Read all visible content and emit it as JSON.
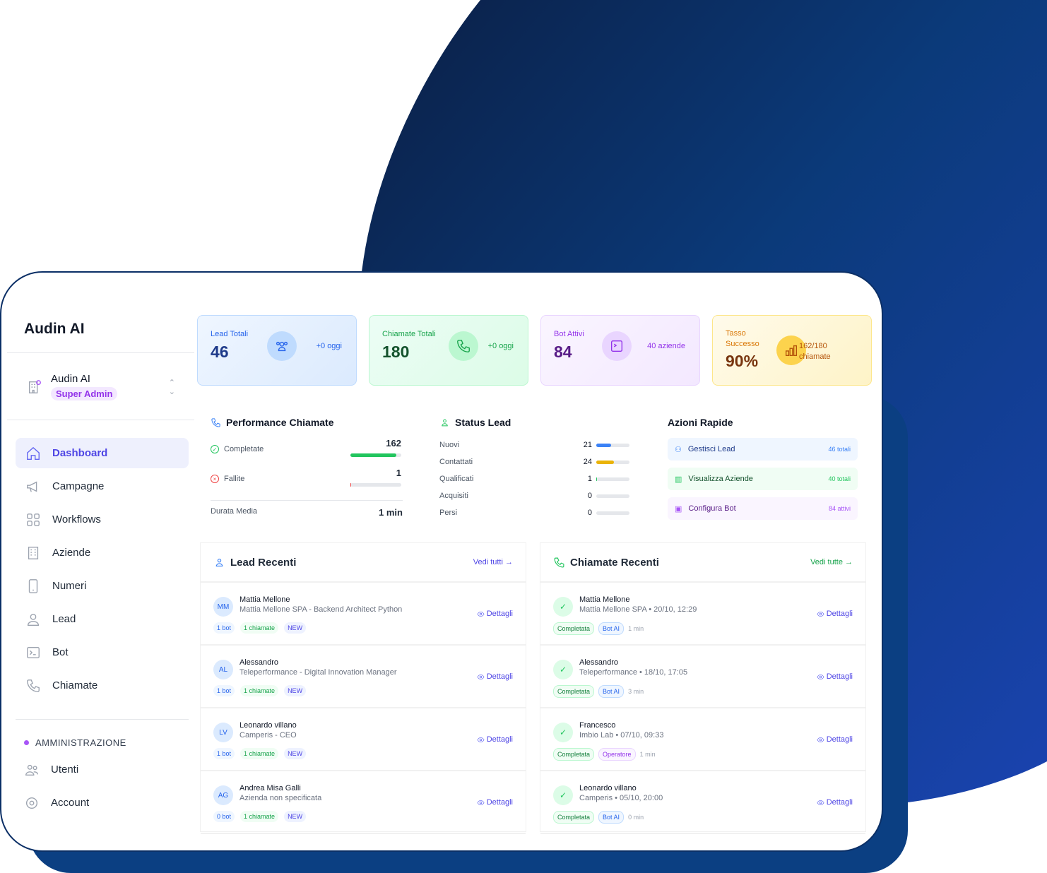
{
  "sidebar": {
    "brand": "Audin AI",
    "org_name": "Audin AI",
    "org_role": "Super Admin",
    "items": [
      {
        "label": "Dashboard",
        "icon": "home-icon"
      },
      {
        "label": "Campagne",
        "icon": "megaphone-icon"
      },
      {
        "label": "Workflows",
        "icon": "grid-icon"
      },
      {
        "label": "Aziende",
        "icon": "building-icon"
      },
      {
        "label": "Numeri",
        "icon": "phone-device-icon"
      },
      {
        "label": "Lead",
        "icon": "user-icon"
      },
      {
        "label": "Bot",
        "icon": "terminal-icon"
      },
      {
        "label": "Chiamate",
        "icon": "phone-icon"
      }
    ],
    "admin_heading": "AMMINISTRAZIONE",
    "admin_items": [
      {
        "label": "Utenti",
        "icon": "users-icon"
      },
      {
        "label": "Account",
        "icon": "gear-icon"
      }
    ]
  },
  "stats": [
    {
      "label": "Lead Totali",
      "value": "46",
      "side": "+0 oggi",
      "color": "#1e3a8a"
    },
    {
      "label": "Chiamate Totali",
      "value": "180",
      "side": "+0 oggi",
      "color": "#14532d"
    },
    {
      "label": "Bot Attivi",
      "value": "84",
      "side": "40 aziende",
      "color": "#581c87"
    },
    {
      "label": "Tasso Successo",
      "value": "90%",
      "side": "162/180 chiamate",
      "color": "#78350f"
    }
  ],
  "performance": {
    "title": "Performance Chiamate",
    "completed_label": "Completate",
    "completed": "162",
    "failed_label": "Fallite",
    "failed": "1",
    "total": 180,
    "avg_label": "Durata Media",
    "avg": "1 min"
  },
  "status": {
    "title": "Status Lead",
    "rows": [
      {
        "label": "Nuovi",
        "value": 21,
        "color": "#3b82f6"
      },
      {
        "label": "Contattati",
        "value": 24,
        "color": "#eab308"
      },
      {
        "label": "Qualificati",
        "value": 1,
        "color": "#22c55e"
      },
      {
        "label": "Acquisiti",
        "value": 0,
        "color": "#22c55e"
      },
      {
        "label": "Persi",
        "value": 0,
        "color": "#ef4444"
      }
    ],
    "total": 46
  },
  "quick": {
    "title": "Azioni Rapide",
    "items": [
      {
        "label": "Gestisci Lead",
        "count": "46 totali"
      },
      {
        "label": "Visualizza Aziende",
        "count": "40 totali"
      },
      {
        "label": "Configura Bot",
        "count": "84 attivi"
      }
    ]
  },
  "leads": {
    "title": "Lead Recenti",
    "more": "Vedi tutti →",
    "details": "Dettagli",
    "rows": [
      {
        "initials": "MM",
        "name": "Mattia Mellone",
        "sub": "Mattia Mellone SPA - Backend Architect Python",
        "bots": "1 bot",
        "calls": "1 chiamate",
        "status": "NEW"
      },
      {
        "initials": "AL",
        "name": "Alessandro",
        "sub": "Teleperformance - Digital Innovation Manager",
        "bots": "1 bot",
        "calls": "1 chiamate",
        "status": "NEW"
      },
      {
        "initials": "LV",
        "name": "Leonardo villano",
        "sub": "Camperis - CEO",
        "bots": "1 bot",
        "calls": "1 chiamate",
        "status": "NEW"
      },
      {
        "initials": "AG",
        "name": "Andrea Misa Galli",
        "sub": "Azienda non specificata",
        "bots": "0 bot",
        "calls": "1 chiamate",
        "status": "NEW"
      }
    ]
  },
  "calls": {
    "title": "Chiamate Recenti",
    "more": "Vedi tutte →",
    "details": "Dettagli",
    "rows": [
      {
        "name": "Mattia Mellone",
        "sub": "Mattia Mellone SPA • 20/10, 12:29",
        "status": "Completata",
        "type": "Bot AI",
        "dur": "1 min"
      },
      {
        "name": "Alessandro",
        "sub": "Teleperformance • 18/10, 17:05",
        "status": "Completata",
        "type": "Bot AI",
        "dur": "3 min"
      },
      {
        "name": "Francesco",
        "sub": "Imbio Lab • 07/10, 09:33",
        "status": "Completata",
        "type": "Operatore",
        "dur": "1 min"
      },
      {
        "name": "Leonardo villano",
        "sub": "Camperis • 05/10, 20:00",
        "status": "Completata",
        "type": "Bot AI",
        "dur": "0 min"
      }
    ]
  }
}
